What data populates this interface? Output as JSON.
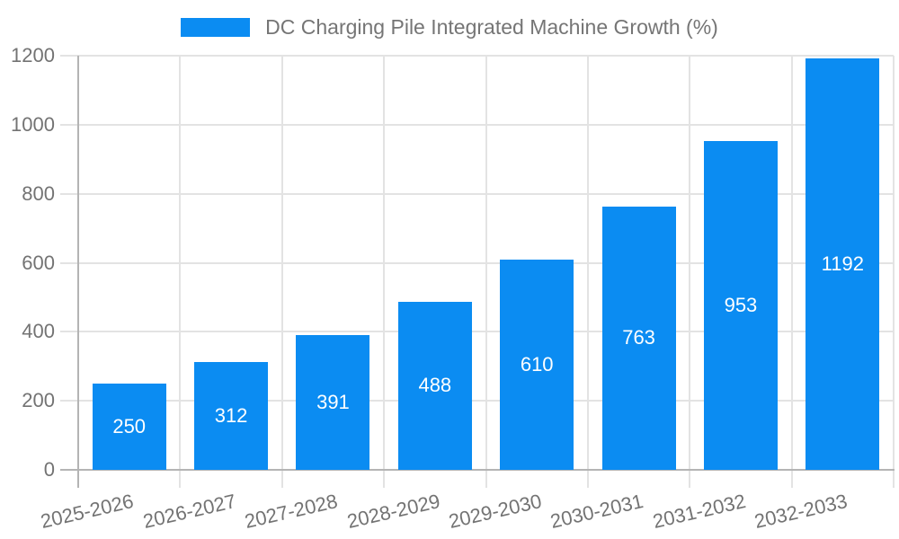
{
  "chart_data": {
    "type": "bar",
    "title": "DC Charging Pile Integrated Machine Growth (%)",
    "categories": [
      "2025-2026",
      "2026-2027",
      "2027-2028",
      "2028-2029",
      "2029-2030",
      "2030-2031",
      "2031-2032",
      "2032-2033"
    ],
    "values": [
      250,
      312,
      391,
      488,
      610,
      763,
      953,
      1192
    ],
    "xlabel": "",
    "ylabel": "",
    "ylim": [
      0,
      1200
    ],
    "yticks": [
      0,
      200,
      400,
      600,
      800,
      1000,
      1200
    ],
    "grid": true,
    "legend_position": "top-center",
    "value_labels_position": "inside-center",
    "colors": {
      "bar": "#0b8cf2",
      "value_label": "#ffffff",
      "text": "#737373",
      "grid": "#e3e3e3",
      "axis": "#b4b4b4"
    }
  }
}
